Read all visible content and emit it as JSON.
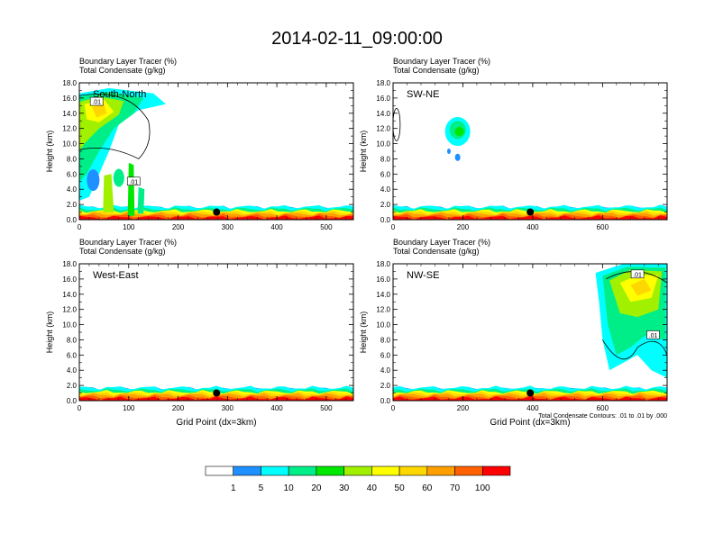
{
  "title": "2014-02-11_09:00:00",
  "field_label_1": "Boundary Layer Tracer    (%)",
  "field_label_2": "Total Condensate    (g/kg)",
  "ylabel": "Height (km)",
  "xlabel": "Grid Point (dx=3km)",
  "contour_note": "Total Condensate Contours: .01 to .01 by .000",
  "colorbar": {
    "colors": [
      "#ffffff",
      "#1e90ff",
      "#00ffff",
      "#00ee88",
      "#00e800",
      "#a0f000",
      "#ffff00",
      "#ffd700",
      "#ffa000",
      "#ff6000",
      "#ff0000"
    ],
    "labels": [
      "1",
      "5",
      "10",
      "20",
      "30",
      "40",
      "50",
      "60",
      "70",
      "100"
    ]
  },
  "chart_data": [
    {
      "type": "heatmap",
      "panel": "South-North",
      "title": "South-North",
      "xlim": [
        0,
        555
      ],
      "ylim": [
        0,
        18
      ],
      "xticks": [
        0,
        100,
        200,
        300,
        400,
        500
      ],
      "yticks": [
        0,
        2,
        4,
        6,
        8,
        10,
        12,
        14,
        16,
        18
      ],
      "ytick_labels": [
        "0.0",
        "2.0",
        "4.0",
        "6.0",
        "8.0",
        "10.0",
        "12.0",
        "14.0",
        "16.0",
        "18.0"
      ],
      "marker": {
        "x": 278,
        "y": 1.0
      },
      "contour_labels": [
        ".01",
        ".01"
      ],
      "xlabel": "",
      "ylabel": "Height (km)"
    },
    {
      "type": "heatmap",
      "panel": "SW-NE",
      "title": "SW-NE",
      "xlim": [
        0,
        785
      ],
      "ylim": [
        0,
        18
      ],
      "xticks": [
        0,
        200,
        400,
        600
      ],
      "yticks": [
        0,
        2,
        4,
        6,
        8,
        10,
        12,
        14,
        16,
        18
      ],
      "ytick_labels": [
        "0.0",
        "2.0",
        "4.0",
        "6.0",
        "8.0",
        "10.0",
        "12.0",
        "14.0",
        "16.0",
        "18.0"
      ],
      "marker": {
        "x": 393,
        "y": 1.0
      },
      "contour_labels": [],
      "xlabel": "",
      "ylabel": "Height (km)"
    },
    {
      "type": "heatmap",
      "panel": "West-East",
      "title": "West-East",
      "xlim": [
        0,
        555
      ],
      "ylim": [
        0,
        18
      ],
      "xticks": [
        0,
        100,
        200,
        300,
        400,
        500
      ],
      "yticks": [
        0,
        2,
        4,
        6,
        8,
        10,
        12,
        14,
        16,
        18
      ],
      "ytick_labels": [
        "0.0",
        "2.0",
        "4.0",
        "6.0",
        "8.0",
        "10.0",
        "12.0",
        "14.0",
        "16.0",
        "18.0"
      ],
      "marker": {
        "x": 278,
        "y": 1.0
      },
      "contour_labels": [],
      "xlabel": "Grid Point (dx=3km)",
      "ylabel": "Height (km)"
    },
    {
      "type": "heatmap",
      "panel": "NW-SE",
      "title": "NW-SE",
      "xlim": [
        0,
        785
      ],
      "ylim": [
        0,
        18
      ],
      "xticks": [
        0,
        200,
        400,
        600
      ],
      "yticks": [
        0,
        2,
        4,
        6,
        8,
        10,
        12,
        14,
        16,
        18
      ],
      "ytick_labels": [
        "0.0",
        "2.0",
        "4.0",
        "6.0",
        "8.0",
        "10.0",
        "12.0",
        "14.0",
        "16.0",
        "18.0"
      ],
      "marker": {
        "x": 393,
        "y": 1.0
      },
      "contour_labels": [
        ".01",
        ".01"
      ],
      "xlabel": "Grid Point (dx=3km)",
      "ylabel": "Height (km)"
    }
  ]
}
